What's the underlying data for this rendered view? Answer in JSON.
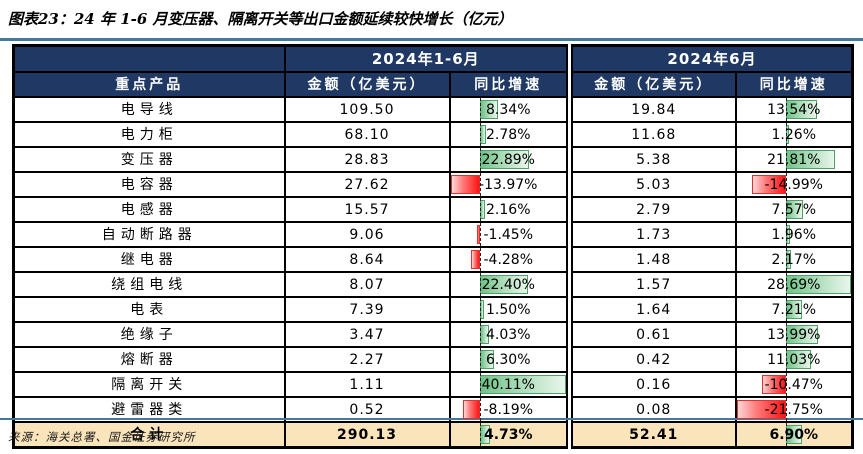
{
  "title": "图表23：24 年 1-6 月变压器、隔离开关等出口金额延续较快增长（亿元）",
  "source": "来源：海关总署、国金证券研究所",
  "colors": {
    "header_bg": "#1F3864",
    "header_text": "#FFFFFF",
    "total_row_bg": "#FAE4BB",
    "rule_line": "#47789C",
    "positive_bar_green": "#63BE7B",
    "negative_bar_red": "#FF1414",
    "grid": "#000000"
  },
  "chart_data": {
    "type": "table",
    "group_headers": [
      "2024年1-6月",
      "2024年6月"
    ],
    "col_headers": [
      "重点产品",
      "金额（亿美元）",
      "同比增速",
      "金额（亿美元）",
      "同比增速"
    ],
    "databar_note": "Excel-style conditional data bars in both 同比增速 columns; green right of dashed axis for positive, red left for negative, scaled to column min/max",
    "rows": [
      {
        "product": "电导线",
        "amount_h1": "109.50",
        "yoy_h1_pct": 8.34,
        "amount_jun": "19.84",
        "yoy_jun_pct": 13.54
      },
      {
        "product": "电力柜",
        "amount_h1": "68.10",
        "yoy_h1_pct": 2.78,
        "amount_jun": "11.68",
        "yoy_jun_pct": 1.26
      },
      {
        "product": "变压器",
        "amount_h1": "28.83",
        "yoy_h1_pct": 22.89,
        "amount_jun": "5.38",
        "yoy_jun_pct": 21.81
      },
      {
        "product": "电容器",
        "amount_h1": "27.62",
        "yoy_h1_pct": -13.97,
        "amount_jun": "5.03",
        "yoy_jun_pct": -14.99
      },
      {
        "product": "电感器",
        "amount_h1": "15.57",
        "yoy_h1_pct": 2.16,
        "amount_jun": "2.79",
        "yoy_jun_pct": 7.57
      },
      {
        "product": "自动断路器",
        "amount_h1": "9.06",
        "yoy_h1_pct": -1.45,
        "amount_jun": "1.73",
        "yoy_jun_pct": 1.96
      },
      {
        "product": "继电器",
        "amount_h1": "8.64",
        "yoy_h1_pct": -4.28,
        "amount_jun": "1.48",
        "yoy_jun_pct": 2.17
      },
      {
        "product": "绕组电线",
        "amount_h1": "8.07",
        "yoy_h1_pct": 22.4,
        "amount_jun": "1.57",
        "yoy_jun_pct": 28.69
      },
      {
        "product": "电表",
        "amount_h1": "7.39",
        "yoy_h1_pct": 1.5,
        "amount_jun": "1.64",
        "yoy_jun_pct": 7.21
      },
      {
        "product": "绝缘子",
        "amount_h1": "3.47",
        "yoy_h1_pct": 4.03,
        "amount_jun": "0.61",
        "yoy_jun_pct": 13.99
      },
      {
        "product": "熔断器",
        "amount_h1": "2.27",
        "yoy_h1_pct": 6.3,
        "amount_jun": "0.42",
        "yoy_jun_pct": 11.03
      },
      {
        "product": "隔离开关",
        "amount_h1": "1.11",
        "yoy_h1_pct": 40.11,
        "amount_jun": "0.16",
        "yoy_jun_pct": -10.47
      },
      {
        "product": "避雷器类",
        "amount_h1": "0.52",
        "yoy_h1_pct": -8.19,
        "amount_jun": "0.08",
        "yoy_jun_pct": -21.75
      }
    ],
    "total_row": {
      "product": "合计",
      "amount_h1": "290.13",
      "yoy_h1_pct": 4.73,
      "amount_jun": "52.41",
      "yoy_jun_pct": 6.9
    }
  }
}
